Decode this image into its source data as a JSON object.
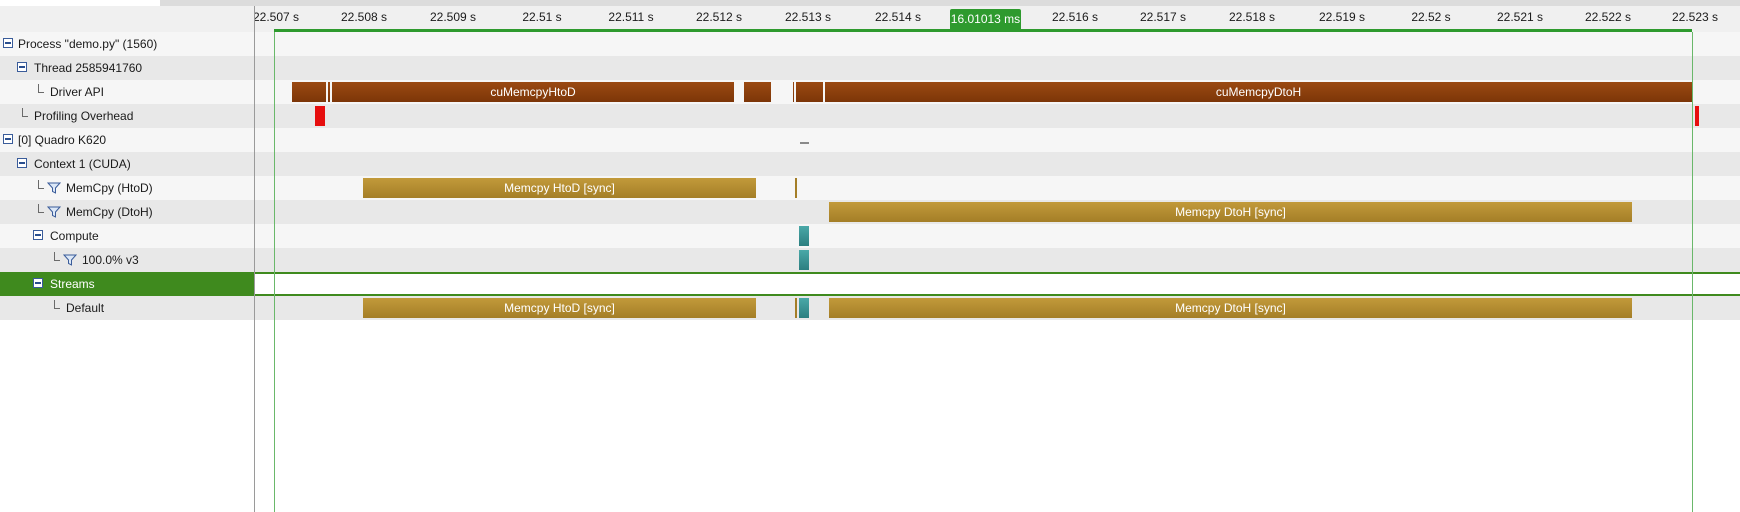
{
  "tree": [
    {
      "label": "Process \"demo.py\" (1560)",
      "icon": "minus-toggle-icon",
      "level": 0
    },
    {
      "label": "Thread 2585941760",
      "icon": "minus-toggle-icon",
      "level": 1
    },
    {
      "label": "Driver API",
      "icon": "connector-icon",
      "level": 2
    },
    {
      "label": "Profiling Overhead",
      "icon": "connector-icon",
      "level": 1
    },
    {
      "label": "[0] Quadro K620",
      "icon": "minus-toggle-icon",
      "level": 0
    },
    {
      "label": "Context 1 (CUDA)",
      "icon": "minus-toggle-icon",
      "level": 1
    },
    {
      "label": "MemCpy (HtoD)",
      "icon": "funnel-icon",
      "level": 2
    },
    {
      "label": "MemCpy (DtoH)",
      "icon": "funnel-icon",
      "level": 2
    },
    {
      "label": "Compute",
      "icon": "minus-toggle-icon",
      "level": 2
    },
    {
      "label": "100.0% v3",
      "icon": "funnel-icon",
      "level": 3
    },
    {
      "label": "Streams",
      "icon": "minus-toggle-icon",
      "level": 2,
      "selected": true
    },
    {
      "label": "Default",
      "icon": "connector-icon",
      "level": 3
    }
  ],
  "ruler": {
    "unit_suffix": " s",
    "ticks": [
      "22.507 s",
      "22.508 s",
      "22.509 s",
      "22.51 s",
      "22.511 s",
      "22.512 s",
      "22.513 s",
      "22.514 s",
      "22.516 s",
      "22.517 s",
      "22.518 s",
      "22.519 s",
      "22.52 s",
      "22.521 s",
      "22.522 s",
      "22.523 s"
    ],
    "selection_label": "16.01013 ms",
    "selection_color": "#2e9a2e"
  },
  "bars": {
    "driver_api": {
      "htod_label": "cuMemcpyHtoD",
      "dtoh_label": "cuMemcpyDtoH"
    },
    "memcpy_htod": {
      "label": "Memcpy HtoD [sync]"
    },
    "memcpy_dtoh": {
      "label": "Memcpy DtoH [sync]"
    },
    "stream_htod": {
      "label": "Memcpy HtoD [sync]"
    },
    "stream_dtoh": {
      "label": "Memcpy DtoH [sync]"
    }
  },
  "colors": {
    "api": "#8b4010",
    "memcpy": "#b38d30",
    "kernel": "#3a9494",
    "overhead": "#e60e0e",
    "selected_row": "#3f8a1e"
  }
}
